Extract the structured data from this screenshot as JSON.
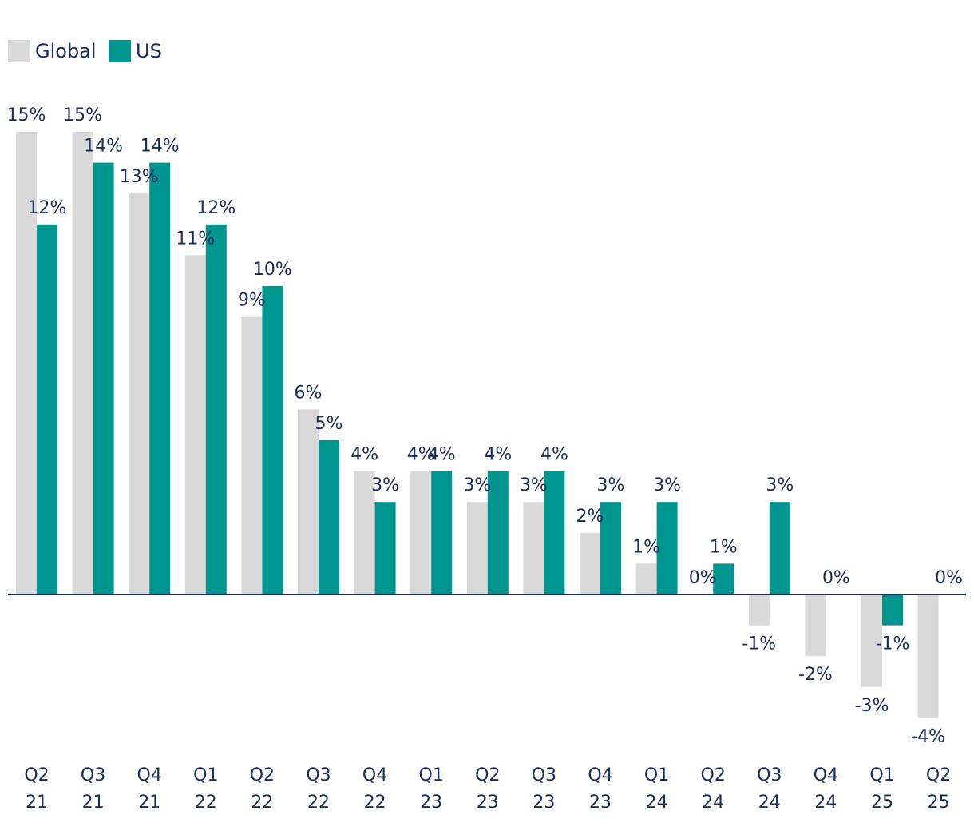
{
  "chart_data": {
    "type": "bar",
    "title": "",
    "xlabel": "",
    "ylabel": "",
    "ylim": [
      -5,
      16
    ],
    "grid": false,
    "legend_position": "top-left",
    "categories": [
      [
        "Q2",
        "21"
      ],
      [
        "Q3",
        "21"
      ],
      [
        "Q4",
        "21"
      ],
      [
        "Q1",
        "22"
      ],
      [
        "Q2",
        "22"
      ],
      [
        "Q3",
        "22"
      ],
      [
        "Q4",
        "22"
      ],
      [
        "Q1",
        "23"
      ],
      [
        "Q2",
        "23"
      ],
      [
        "Q3",
        "23"
      ],
      [
        "Q4",
        "23"
      ],
      [
        "Q1",
        "24"
      ],
      [
        "Q2",
        "24"
      ],
      [
        "Q3",
        "24"
      ],
      [
        "Q4",
        "24"
      ],
      [
        "Q1",
        "25"
      ],
      [
        "Q2",
        "25"
      ]
    ],
    "series": [
      {
        "name": "Global",
        "color": "#d9d9d9",
        "values": [
          15,
          15,
          13,
          11,
          9,
          6,
          4,
          4,
          3,
          3,
          2,
          1,
          0,
          -1,
          -2,
          -3,
          -4
        ],
        "labels": [
          "15%",
          "15%",
          "13%",
          "11%",
          "9%",
          "6%",
          "4%",
          "4%",
          "3%",
          "3%",
          "2%",
          "1%",
          "0%",
          "-1%",
          "-2%",
          "-3%",
          "-4%"
        ]
      },
      {
        "name": "US",
        "color": "#009690",
        "values": [
          12,
          14,
          14,
          12,
          10,
          5,
          3,
          4,
          4,
          4,
          3,
          3,
          1,
          3,
          0,
          -1,
          0
        ],
        "labels": [
          "12%",
          "14%",
          "14%",
          "12%",
          "10%",
          "5%",
          "3%",
          "4%",
          "4%",
          "4%",
          "3%",
          "3%",
          "1%",
          "3%",
          "0%",
          "-1%",
          "0%"
        ]
      }
    ],
    "axis_color": "#1a2b5c",
    "text_color": "#1a2b5c"
  }
}
